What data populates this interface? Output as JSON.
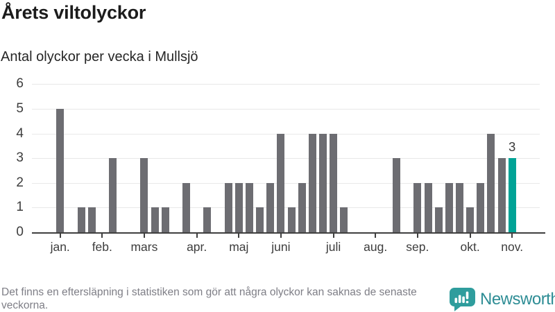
{
  "header": {
    "title": "Årets viltolyckor",
    "subtitle": "Antal olyckor per vecka i Mullsjö"
  },
  "chart_data": {
    "type": "bar",
    "title": "Årets viltolyckor",
    "subtitle": "Antal olyckor per vecka i Mullsjö",
    "ylabel": "",
    "xlabel": "",
    "ylim": [
      0,
      6
    ],
    "yticks": [
      0,
      1,
      2,
      3,
      4,
      5,
      6
    ],
    "grid": true,
    "weeks": [
      5,
      0,
      1,
      1,
      0,
      3,
      0,
      0,
      3,
      1,
      1,
      0,
      2,
      0,
      1,
      0,
      2,
      2,
      2,
      1,
      2,
      4,
      1,
      2,
      4,
      4,
      4,
      1,
      0,
      0,
      0,
      0,
      3,
      0,
      2,
      2,
      1,
      2,
      2,
      1,
      2,
      4,
      3,
      3
    ],
    "months": [
      {
        "label": "jan.",
        "week": 0
      },
      {
        "label": "feb.",
        "week": 4
      },
      {
        "label": "mars",
        "week": 8
      },
      {
        "label": "apr.",
        "week": 13
      },
      {
        "label": "maj",
        "week": 17
      },
      {
        "label": "juni",
        "week": 21
      },
      {
        "label": "juli",
        "week": 26
      },
      {
        "label": "aug.",
        "week": 30
      },
      {
        "label": "sep.",
        "week": 34
      },
      {
        "label": "okt.",
        "week": 39
      },
      {
        "label": "nov.",
        "week": 43
      }
    ],
    "highlight_index": 43,
    "highlight_label": "3",
    "bar_color": "#6d6d72",
    "highlight_color": "#00a396",
    "axis_color": "#3f3f3f",
    "grid_color": "#e8e8e8"
  },
  "footer": {
    "note": "Det finns en eftersläpning i statistiken som gör att några olyckor kan saknas de senaste veckorna.",
    "brand": "Newsworthy",
    "brand_color": "#2e8d95",
    "logo_bubble_color": "#2f9d9d"
  },
  "icons": {
    "logo": "newsworthy-speech-bubble-bar-chart-icon"
  }
}
